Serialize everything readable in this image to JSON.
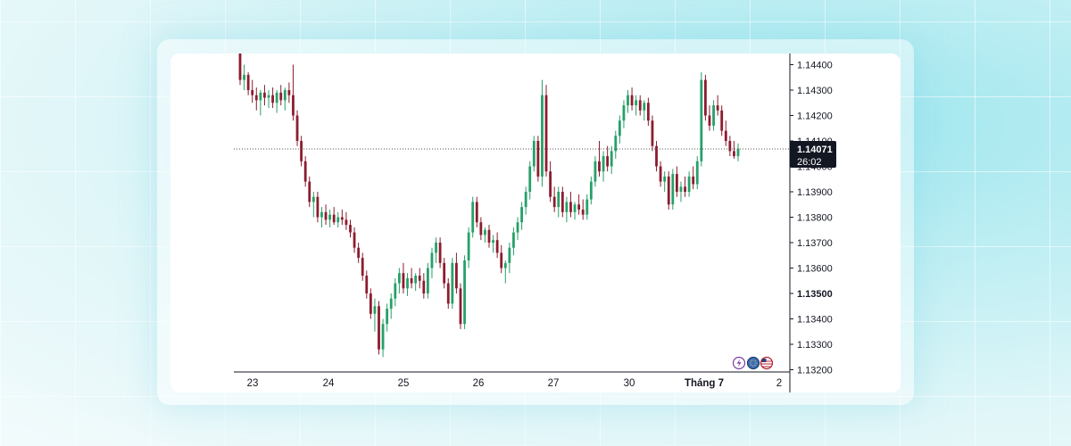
{
  "chart_data": {
    "type": "candlestick",
    "y_ticks": [
      "1.14400",
      "1.14300",
      "1.14200",
      "1.14100",
      "1.14000",
      "1.13900",
      "1.13800",
      "1.13700",
      "1.13600",
      "1.13500",
      "1.13400",
      "1.13300",
      "1.13200"
    ],
    "ylim": [
      1.1318,
      1.1445
    ],
    "x_ticks": [
      "23",
      "24",
      "25",
      "26",
      "27",
      "30",
      "Tháng 7",
      "2"
    ],
    "current_price": "1.14071",
    "countdown": "26:02",
    "colors": {
      "up": "#26a069",
      "down": "#8c1c2e",
      "tag_bg": "#131722",
      "axis": "#131722",
      "price_line": "#555555"
    },
    "candles": [
      [
        1.1445,
        1.1445,
        1.1432,
        1.1434
      ],
      [
        1.1434,
        1.144,
        1.143,
        1.1436
      ],
      [
        1.1436,
        1.1437,
        1.1428,
        1.143
      ],
      [
        1.143,
        1.1434,
        1.1425,
        1.1428
      ],
      [
        1.1428,
        1.1431,
        1.1422,
        1.1426
      ],
      [
        1.1426,
        1.143,
        1.142,
        1.1429
      ],
      [
        1.1429,
        1.1432,
        1.1424,
        1.1427
      ],
      [
        1.1427,
        1.143,
        1.1423,
        1.1428
      ],
      [
        1.1428,
        1.1431,
        1.1423,
        1.1425
      ],
      [
        1.1425,
        1.143,
        1.1421,
        1.1429
      ],
      [
        1.1429,
        1.1432,
        1.1424,
        1.1426
      ],
      [
        1.1426,
        1.1431,
        1.1422,
        1.143
      ],
      [
        1.143,
        1.1433,
        1.1425,
        1.1428
      ],
      [
        1.1428,
        1.144,
        1.1418,
        1.142
      ],
      [
        1.142,
        1.1422,
        1.1408,
        1.141
      ],
      [
        1.141,
        1.1412,
        1.14,
        1.1402
      ],
      [
        1.1402,
        1.1404,
        1.1392,
        1.1394
      ],
      [
        1.1394,
        1.1396,
        1.1384,
        1.1386
      ],
      [
        1.1386,
        1.139,
        1.138,
        1.1388
      ],
      [
        1.1388,
        1.139,
        1.1378,
        1.138
      ],
      [
        1.138,
        1.1384,
        1.1376,
        1.1382
      ],
      [
        1.1382,
        1.1385,
        1.1377,
        1.1379
      ],
      [
        1.1379,
        1.1383,
        1.1376,
        1.1381
      ],
      [
        1.1381,
        1.1384,
        1.1377,
        1.1378
      ],
      [
        1.1378,
        1.1382,
        1.1376,
        1.138
      ],
      [
        1.138,
        1.1383,
        1.1377,
        1.1379
      ],
      [
        1.1379,
        1.1382,
        1.1375,
        1.1377
      ],
      [
        1.1377,
        1.1379,
        1.1372,
        1.1374
      ],
      [
        1.1374,
        1.1376,
        1.1366,
        1.1368
      ],
      [
        1.1368,
        1.137,
        1.1362,
        1.1364
      ],
      [
        1.1364,
        1.1366,
        1.1355,
        1.1357
      ],
      [
        1.1357,
        1.1359,
        1.1348,
        1.135
      ],
      [
        1.135,
        1.1352,
        1.134,
        1.1342
      ],
      [
        1.1342,
        1.1348,
        1.1335,
        1.1345
      ],
      [
        1.1345,
        1.1347,
        1.1326,
        1.1328
      ],
      [
        1.1328,
        1.134,
        1.1325,
        1.1338
      ],
      [
        1.1338,
        1.1346,
        1.1335,
        1.1344
      ],
      [
        1.1344,
        1.135,
        1.134,
        1.1348
      ],
      [
        1.1348,
        1.1356,
        1.1345,
        1.1354
      ],
      [
        1.1354,
        1.136,
        1.135,
        1.1358
      ],
      [
        1.1358,
        1.1362,
        1.135,
        1.1352
      ],
      [
        1.1352,
        1.1358,
        1.1349,
        1.1356
      ],
      [
        1.1356,
        1.136,
        1.1352,
        1.1354
      ],
      [
        1.1354,
        1.1358,
        1.1351,
        1.1357
      ],
      [
        1.1357,
        1.136,
        1.1352,
        1.1355
      ],
      [
        1.1355,
        1.1358,
        1.1348,
        1.135
      ],
      [
        1.135,
        1.1362,
        1.1348,
        1.136
      ],
      [
        1.136,
        1.1368,
        1.1356,
        1.1366
      ],
      [
        1.1366,
        1.1372,
        1.1362,
        1.137
      ],
      [
        1.137,
        1.1372,
        1.136,
        1.1362
      ],
      [
        1.1362,
        1.1364,
        1.1352,
        1.1354
      ],
      [
        1.1354,
        1.1356,
        1.1344,
        1.1346
      ],
      [
        1.1346,
        1.1364,
        1.1344,
        1.1362
      ],
      [
        1.1362,
        1.1366,
        1.135,
        1.1352
      ],
      [
        1.1352,
        1.1354,
        1.1336,
        1.1338
      ],
      [
        1.1338,
        1.1365,
        1.1336,
        1.1363
      ],
      [
        1.1363,
        1.1376,
        1.136,
        1.1374
      ],
      [
        1.1374,
        1.1388,
        1.1372,
        1.1386
      ],
      [
        1.1386,
        1.1388,
        1.1376,
        1.1378
      ],
      [
        1.1378,
        1.138,
        1.1371,
        1.1373
      ],
      [
        1.1373,
        1.1376,
        1.137,
        1.1375
      ],
      [
        1.1375,
        1.1377,
        1.1368,
        1.137
      ],
      [
        1.137,
        1.1373,
        1.1366,
        1.1371
      ],
      [
        1.1371,
        1.1374,
        1.1364,
        1.1366
      ],
      [
        1.1366,
        1.1369,
        1.1358,
        1.136
      ],
      [
        1.136,
        1.1363,
        1.1354,
        1.1362
      ],
      [
        1.1362,
        1.137,
        1.1358,
        1.1368
      ],
      [
        1.1368,
        1.1376,
        1.1365,
        1.1374
      ],
      [
        1.1374,
        1.138,
        1.1371,
        1.1378
      ],
      [
        1.1378,
        1.1386,
        1.1375,
        1.1384
      ],
      [
        1.1384,
        1.1392,
        1.1381,
        1.139
      ],
      [
        1.139,
        1.1402,
        1.1387,
        1.14
      ],
      [
        1.14,
        1.1412,
        1.1398,
        1.141
      ],
      [
        1.141,
        1.1412,
        1.1394,
        1.1396
      ],
      [
        1.1396,
        1.1434,
        1.1392,
        1.1428
      ],
      [
        1.1428,
        1.1432,
        1.1396,
        1.1398
      ],
      [
        1.1398,
        1.1402,
        1.1386,
        1.1388
      ],
      [
        1.1388,
        1.1392,
        1.1382,
        1.1384
      ],
      [
        1.1384,
        1.1392,
        1.138,
        1.139
      ],
      [
        1.139,
        1.1392,
        1.138,
        1.1382
      ],
      [
        1.1382,
        1.1388,
        1.1378,
        1.1386
      ],
      [
        1.1386,
        1.139,
        1.138,
        1.1382
      ],
      [
        1.1382,
        1.1386,
        1.1379,
        1.1385
      ],
      [
        1.1385,
        1.1389,
        1.1381,
        1.1383
      ],
      [
        1.1383,
        1.1387,
        1.1379,
        1.1381
      ],
      [
        1.1381,
        1.1389,
        1.1379,
        1.1387
      ],
      [
        1.1387,
        1.1396,
        1.1385,
        1.1394
      ],
      [
        1.1394,
        1.1404,
        1.1392,
        1.1402
      ],
      [
        1.1402,
        1.141,
        1.1396,
        1.1398
      ],
      [
        1.1398,
        1.1406,
        1.1394,
        1.1404
      ],
      [
        1.1404,
        1.1408,
        1.1398,
        1.14
      ],
      [
        1.14,
        1.1408,
        1.1397,
        1.1406
      ],
      [
        1.1406,
        1.1414,
        1.1403,
        1.1412
      ],
      [
        1.1412,
        1.142,
        1.1409,
        1.1418
      ],
      [
        1.1418,
        1.1426,
        1.1415,
        1.1424
      ],
      [
        1.1424,
        1.143,
        1.1421,
        1.1428
      ],
      [
        1.1428,
        1.1431,
        1.1422,
        1.1424
      ],
      [
        1.1424,
        1.1428,
        1.142,
        1.1426
      ],
      [
        1.1426,
        1.1428,
        1.142,
        1.1422
      ],
      [
        1.1422,
        1.1426,
        1.1418,
        1.1425
      ],
      [
        1.1425,
        1.1427,
        1.1416,
        1.1418
      ],
      [
        1.1418,
        1.142,
        1.1406,
        1.1408
      ],
      [
        1.1408,
        1.141,
        1.1398,
        1.14
      ],
      [
        1.14,
        1.1402,
        1.1392,
        1.1394
      ],
      [
        1.1394,
        1.1398,
        1.139,
        1.1396
      ],
      [
        1.1396,
        1.1398,
        1.1383,
        1.1385
      ],
      [
        1.1385,
        1.1399,
        1.1383,
        1.1397
      ],
      [
        1.1397,
        1.14,
        1.1388,
        1.139
      ],
      [
        1.139,
        1.1394,
        1.1386,
        1.1392
      ],
      [
        1.1392,
        1.1396,
        1.1388,
        1.139
      ],
      [
        1.139,
        1.1398,
        1.1388,
        1.1396
      ],
      [
        1.1396,
        1.14,
        1.1391,
        1.1393
      ],
      [
        1.1393,
        1.1404,
        1.1391,
        1.1402
      ],
      [
        1.1402,
        1.1437,
        1.14,
        1.1434
      ],
      [
        1.1434,
        1.1436,
        1.1418,
        1.142
      ],
      [
        1.142,
        1.1424,
        1.1414,
        1.1416
      ],
      [
        1.1416,
        1.1426,
        1.1414,
        1.1424
      ],
      [
        1.1424,
        1.1428,
        1.142,
        1.1422
      ],
      [
        1.1422,
        1.1424,
        1.1412,
        1.1414
      ],
      [
        1.1414,
        1.1418,
        1.1408,
        1.141
      ],
      [
        1.141,
        1.1412,
        1.1404,
        1.1406
      ],
      [
        1.1406,
        1.141,
        1.1403,
        1.1404
      ],
      [
        1.1404,
        1.1409,
        1.1402,
        1.1407
      ]
    ]
  }
}
